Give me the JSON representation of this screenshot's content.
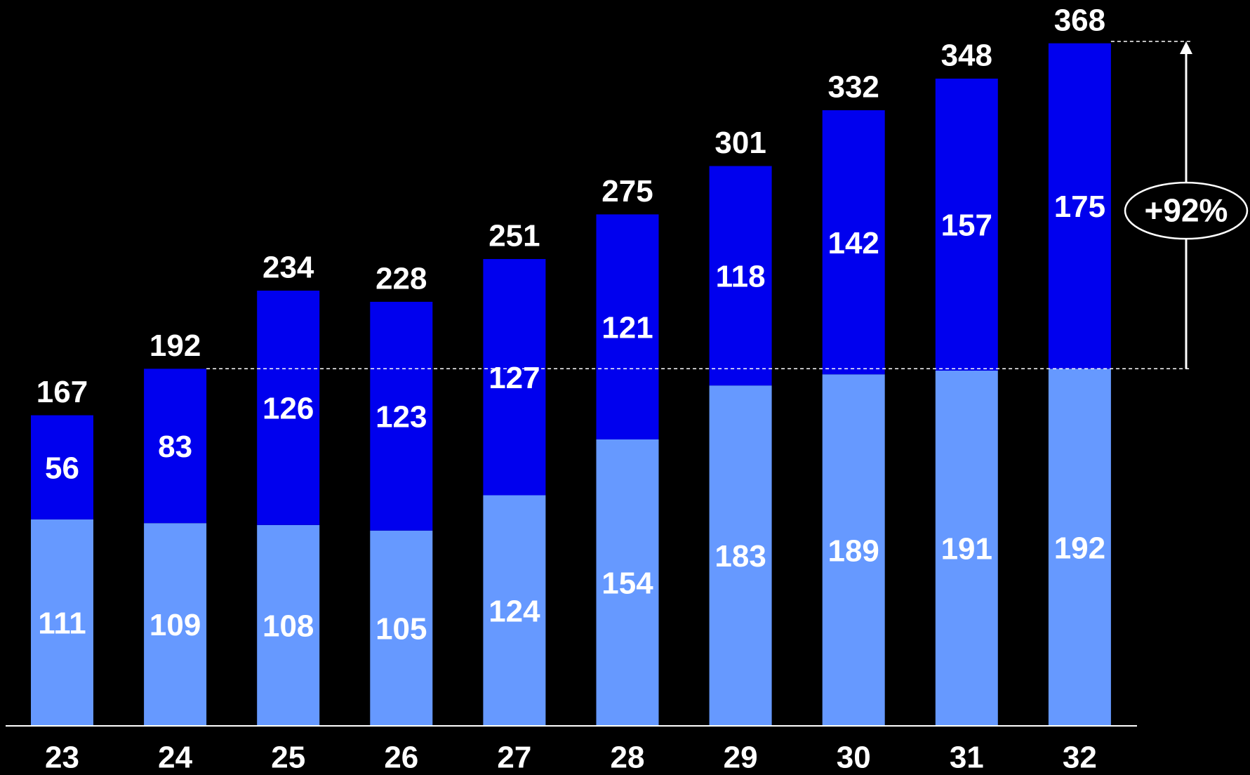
{
  "chart_data": {
    "type": "bar",
    "stacked": true,
    "categories": [
      "23",
      "24",
      "25",
      "26",
      "27",
      "28",
      "29",
      "30",
      "31",
      "32"
    ],
    "series": [
      {
        "values": [
          111,
          109,
          108,
          105,
          124,
          154,
          183,
          189,
          191,
          192
        ],
        "color": "#6699FF"
      },
      {
        "values": [
          56,
          83,
          126,
          123,
          127,
          121,
          118,
          142,
          157,
          175
        ],
        "color": "#0000EE"
      }
    ],
    "totals": [
      167,
      192,
      234,
      228,
      251,
      275,
      301,
      332,
      348,
      368
    ],
    "title": "",
    "xlabel": "",
    "ylabel": "",
    "ylim": [
      0,
      368
    ],
    "grid": false,
    "legend": "none",
    "annotation": {
      "label": "+92%",
      "from_value": 192,
      "to_value": 368
    },
    "colors": {
      "background": "#000000",
      "label_text": "#FFFFFF",
      "axis_line": "#FFFFFF"
    }
  }
}
